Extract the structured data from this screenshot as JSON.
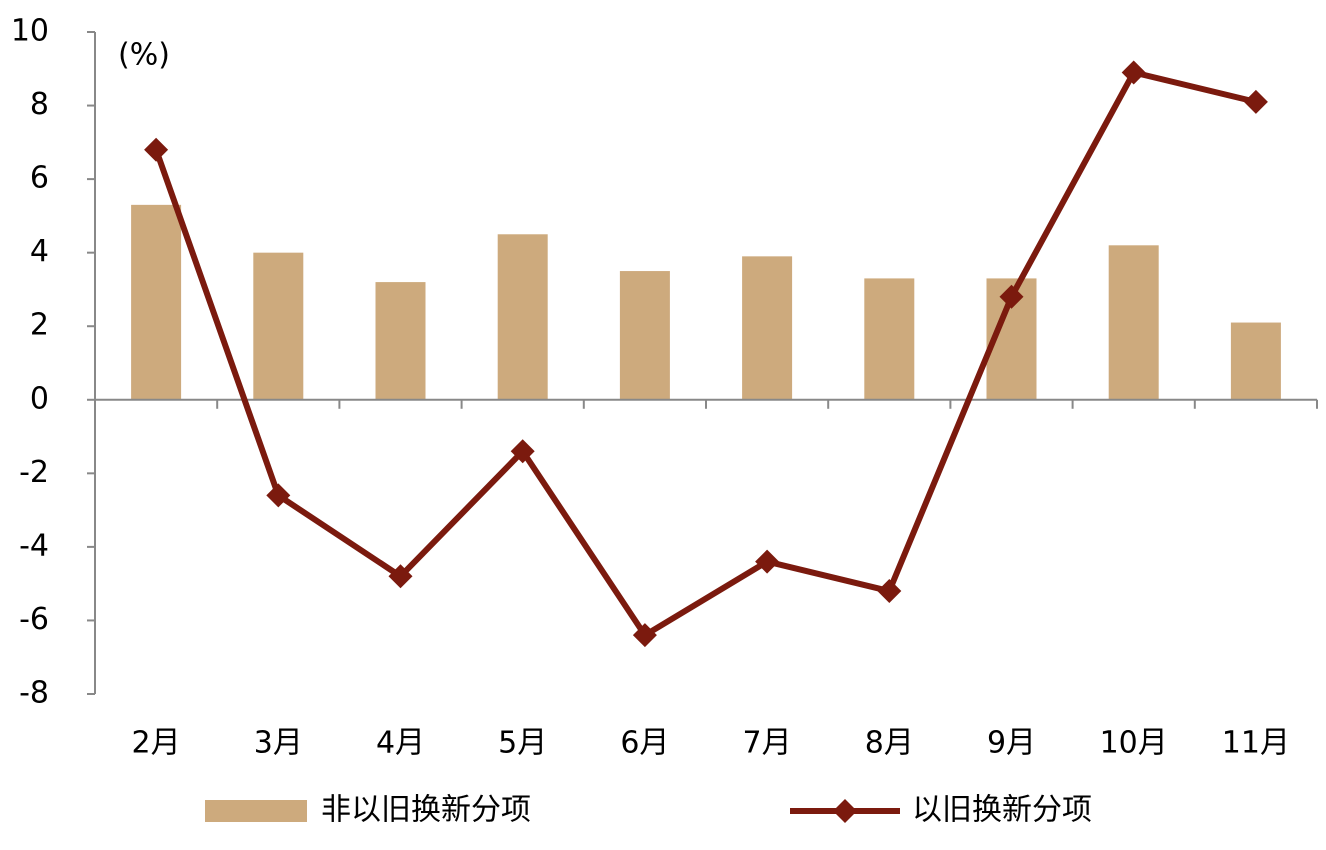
{
  "chart_data": {
    "type": "combo",
    "unit_label": "(%)",
    "categories": [
      "2月",
      "3月",
      "4月",
      "5月",
      "6月",
      "7月",
      "8月",
      "9月",
      "10月",
      "11月"
    ],
    "series": [
      {
        "name": "非以旧换新分项",
        "type": "bar",
        "color": "#cdaa7d",
        "values": [
          5.3,
          4.0,
          3.2,
          4.5,
          3.5,
          3.9,
          3.3,
          3.3,
          4.2,
          2.1
        ]
      },
      {
        "name": "以旧换新分项",
        "type": "line",
        "color": "#7b1a0e",
        "values": [
          6.8,
          -2.6,
          -4.8,
          -1.4,
          -6.4,
          -4.4,
          -5.2,
          2.8,
          8.9,
          8.1
        ]
      }
    ],
    "ylim": [
      -8,
      10
    ],
    "yticks": [
      -8,
      -6,
      -4,
      -2,
      0,
      2,
      4,
      6,
      8,
      10
    ],
    "negative_tick_color": "#ff0000",
    "legend": "bottom"
  }
}
